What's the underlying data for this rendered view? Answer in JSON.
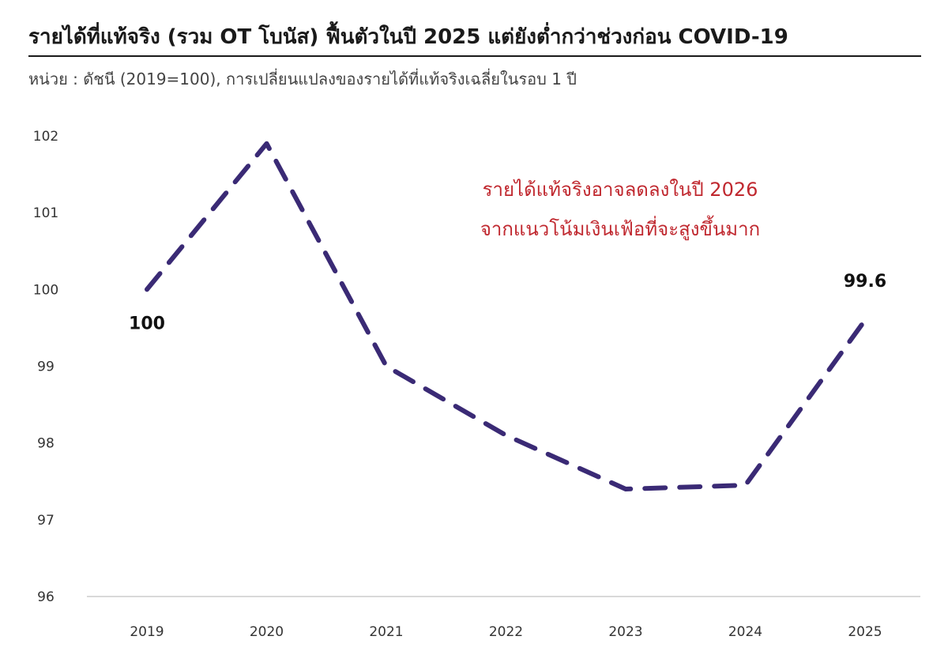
{
  "header": {
    "title": "รายได้ที่แท้จริง (รวม OT โบนัส) ฟื้นตัวในปี 2025 แต่ยังต่ำกว่าช่วงก่อน COVID-19",
    "subtitle": "หน่วย : ดัชนี (2019=100), การเปลี่ยนแปลงของรายได้ที่แท้จริงเฉลี่ยในรอบ 1 ปี"
  },
  "colors": {
    "line": "#3a2a75",
    "annotation": "#c0282f",
    "axis": "#d9d9d9"
  },
  "chart_data": {
    "type": "line",
    "categories": [
      "2019",
      "2020",
      "2021",
      "2022",
      "2023",
      "2024",
      "2025"
    ],
    "series": [
      {
        "values": [
          100,
          101.9,
          99.0,
          98.1,
          97.4,
          97.45,
          99.6
        ],
        "style": "dashed"
      }
    ],
    "ylim": [
      96,
      102
    ],
    "yticks": [
      "96",
      "97",
      "98",
      "99",
      "100",
      "101",
      "102"
    ],
    "grid": false,
    "data_labels": [
      {
        "index": 0,
        "text": "100"
      },
      {
        "index": 6,
        "text": "99.6"
      }
    ],
    "annotation": {
      "lines": [
        "รายได้แท้จริงอาจลดลงในปี 2026",
        "จากแนวโน้มเงินเฟ้อที่จะสูงขึ้นมาก"
      ]
    }
  }
}
